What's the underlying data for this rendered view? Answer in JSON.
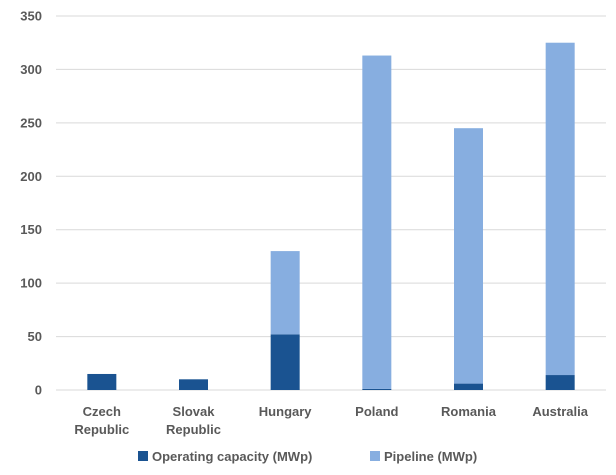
{
  "chart_data": {
    "type": "bar",
    "stacked": true,
    "categories": [
      [
        "Czech",
        "Republic"
      ],
      [
        "Slovak",
        "Republic"
      ],
      [
        "Hungary"
      ],
      [
        "Poland"
      ],
      [
        "Romania"
      ],
      [
        "Australia"
      ]
    ],
    "series": [
      {
        "name": "Operating capacity (MWp)",
        "color": "#1a5391",
        "values": [
          15,
          10,
          52,
          1,
          6,
          14
        ]
      },
      {
        "name": "Pipeline (MWp)",
        "color": "#87aee0",
        "values": [
          0,
          0,
          78,
          312,
          239,
          311
        ]
      }
    ],
    "ylim": [
      0,
      350
    ],
    "yticks": [
      0,
      50,
      100,
      150,
      200,
      250,
      300,
      350
    ],
    "grid": true,
    "legend_position": "bottom"
  }
}
